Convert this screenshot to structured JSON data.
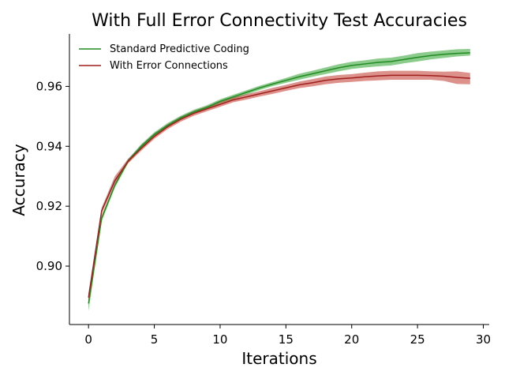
{
  "chart_data": {
    "type": "line",
    "title": "With Full Error Connectivity Test Accuracies",
    "xlabel": "Iterations",
    "ylabel": "Accuracy",
    "xlim": [
      -1.45,
      30.45
    ],
    "ylim": [
      0.8805,
      0.9775
    ],
    "xticks": [
      0,
      5,
      10,
      15,
      20,
      25,
      30
    ],
    "yticks": [
      0.9,
      0.92,
      0.94,
      0.96
    ],
    "xtick_labels": [
      "0",
      "5",
      "10",
      "15",
      "20",
      "25",
      "30"
    ],
    "ytick_labels": [
      "0.90",
      "0.92",
      "0.94",
      "0.96"
    ],
    "grid": false,
    "legend": "top-left",
    "x": [
      0,
      1,
      2,
      3,
      4,
      5,
      6,
      7,
      8,
      9,
      10,
      11,
      12,
      13,
      14,
      15,
      16,
      17,
      18,
      19,
      20,
      21,
      22,
      23,
      24,
      25,
      26,
      27,
      28,
      29
    ],
    "series": [
      {
        "name": "Standard Predictive Coding",
        "color": "#228B22",
        "band_color": "#2ca02c",
        "values": [
          0.8875,
          0.916,
          0.927,
          0.935,
          0.94,
          0.944,
          0.947,
          0.9495,
          0.9515,
          0.953,
          0.955,
          0.9565,
          0.958,
          0.9595,
          0.9608,
          0.962,
          0.9632,
          0.9642,
          0.9652,
          0.9662,
          0.967,
          0.9675,
          0.968,
          0.9683,
          0.969,
          0.9697,
          0.9703,
          0.9707,
          0.971,
          0.9712
        ],
        "lower": [
          0.885,
          0.915,
          0.9262,
          0.9343,
          0.9393,
          0.9433,
          0.9463,
          0.9488,
          0.9508,
          0.9523,
          0.9543,
          0.9558,
          0.9573,
          0.9588,
          0.9601,
          0.9612,
          0.9622,
          0.9632,
          0.9641,
          0.965,
          0.9658,
          0.9663,
          0.9667,
          0.967,
          0.9677,
          0.9683,
          0.969,
          0.9695,
          0.97,
          0.9703
        ],
        "upper": [
          0.89,
          0.917,
          0.9278,
          0.9357,
          0.9407,
          0.9447,
          0.9477,
          0.9502,
          0.9522,
          0.9537,
          0.9557,
          0.9572,
          0.9587,
          0.9602,
          0.9615,
          0.9628,
          0.9642,
          0.9652,
          0.9663,
          0.9674,
          0.9682,
          0.9687,
          0.9693,
          0.9696,
          0.9703,
          0.9711,
          0.9716,
          0.972,
          0.9724,
          0.9725
        ]
      },
      {
        "name": "With Error Connections",
        "color": "#A01E1E",
        "band_color": "#c0392b",
        "values": [
          0.8895,
          0.9185,
          0.9285,
          0.935,
          0.9393,
          0.9433,
          0.9465,
          0.949,
          0.951,
          0.9525,
          0.954,
          0.9555,
          0.9565,
          0.9575,
          0.9585,
          0.9595,
          0.9605,
          0.9612,
          0.962,
          0.9625,
          0.9628,
          0.9632,
          0.9635,
          0.9637,
          0.9637,
          0.9637,
          0.9636,
          0.9634,
          0.963,
          0.9627
        ],
        "lower": [
          0.888,
          0.9175,
          0.9277,
          0.9343,
          0.9385,
          0.9425,
          0.9457,
          0.9482,
          0.9502,
          0.9517,
          0.9532,
          0.9547,
          0.9556,
          0.9566,
          0.9575,
          0.9585,
          0.9594,
          0.96,
          0.9607,
          0.9612,
          0.9615,
          0.9618,
          0.962,
          0.9622,
          0.9622,
          0.9622,
          0.9622,
          0.9618,
          0.9608,
          0.9607
        ],
        "upper": [
          0.891,
          0.9195,
          0.93,
          0.9358,
          0.9401,
          0.9441,
          0.9473,
          0.9498,
          0.9518,
          0.9533,
          0.9548,
          0.9563,
          0.9574,
          0.9584,
          0.9595,
          0.9605,
          0.9616,
          0.9624,
          0.9633,
          0.9638,
          0.9641,
          0.9646,
          0.965,
          0.9652,
          0.9652,
          0.9652,
          0.965,
          0.9649,
          0.965,
          0.9645
        ]
      }
    ]
  }
}
